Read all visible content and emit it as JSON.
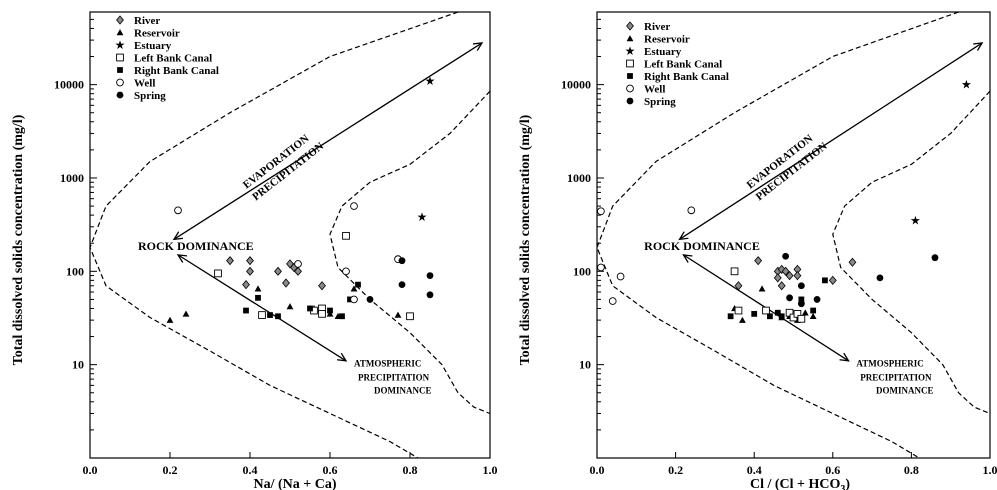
{
  "chart_data": [
    {
      "type": "scatter",
      "xlabel": "Na/ (Na + Ca)",
      "ylabel": "Total dissolved solids concentration (mg/l)",
      "xlim": [
        0,
        1
      ],
      "ylim": [
        1,
        60000
      ],
      "yscale": "log",
      "grid": false,
      "legend_position": "top-left",
      "x_ticks": [
        "0.0",
        "0.2",
        "0.4",
        "0.6",
        "0.8",
        "1.0"
      ],
      "y_ticks": [
        {
          "value": 10,
          "label": "10"
        },
        {
          "value": 100,
          "label": "100"
        },
        {
          "value": 1000,
          "label": "1000"
        },
        {
          "value": 10000,
          "label": "10000"
        }
      ],
      "annotations": {
        "evaporation": "EVAPORATION",
        "precipitation": "PRECIPITATION",
        "rock": "ROCK DOMINANCE",
        "atm1": "ATMOSPHERIC",
        "atm2": "PRECIPITATION",
        "atm3": "DOMINANCE"
      },
      "series": [
        {
          "name": "River",
          "marker": "diamond",
          "points": [
            [
              0.35,
              130
            ],
            [
              0.4,
              130
            ],
            [
              0.4,
              100
            ],
            [
              0.39,
              72
            ],
            [
              0.47,
              100
            ],
            [
              0.5,
              120
            ],
            [
              0.51,
              110
            ],
            [
              0.52,
              100
            ],
            [
              0.49,
              75
            ],
            [
              0.58,
              70
            ]
          ]
        },
        {
          "name": "Reservoir",
          "marker": "triangle",
          "points": [
            [
              0.2,
              30
            ],
            [
              0.24,
              35
            ],
            [
              0.42,
              65
            ],
            [
              0.5,
              42
            ],
            [
              0.56,
              40
            ],
            [
              0.6,
              35
            ],
            [
              0.62,
              33
            ],
            [
              0.66,
              65
            ],
            [
              0.77,
              34
            ]
          ]
        },
        {
          "name": "Estuary",
          "marker": "star",
          "points": [
            [
              0.85,
              11000
            ],
            [
              0.83,
              380
            ]
          ]
        },
        {
          "name": "Left Bank Canal",
          "marker": "square-open",
          "points": [
            [
              0.32,
              95
            ],
            [
              0.43,
              34
            ],
            [
              0.56,
              38
            ],
            [
              0.58,
              40
            ],
            [
              0.58,
              35
            ],
            [
              0.64,
              240
            ],
            [
              0.8,
              33
            ]
          ]
        },
        {
          "name": "Right Bank Canal",
          "marker": "square-filled",
          "points": [
            [
              0.39,
              38
            ],
            [
              0.42,
              52
            ],
            [
              0.45,
              34
            ],
            [
              0.47,
              33
            ],
            [
              0.55,
              40
            ],
            [
              0.6,
              38
            ],
            [
              0.63,
              33
            ],
            [
              0.65,
              50
            ],
            [
              0.67,
              72
            ]
          ]
        },
        {
          "name": "Well",
          "marker": "circle-open",
          "points": [
            [
              0.22,
              450
            ],
            [
              0.66,
              500
            ],
            [
              0.64,
              100
            ],
            [
              0.66,
              50
            ],
            [
              0.52,
              120
            ],
            [
              0.77,
              135
            ]
          ]
        },
        {
          "name": "Spring",
          "marker": "circle-filled",
          "points": [
            [
              0.7,
              50
            ],
            [
              0.78,
              130
            ],
            [
              0.78,
              72
            ],
            [
              0.85,
              90
            ],
            [
              0.85,
              56
            ]
          ]
        }
      ]
    },
    {
      "type": "scatter",
      "xlabel_main": "Cl / (Cl + HCO",
      "xlabel_sub": "3",
      "xlabel_tail": ")",
      "ylabel": "Total dissolved solids concentration (mg/l)",
      "xlim": [
        0,
        1
      ],
      "ylim": [
        1,
        60000
      ],
      "yscale": "log",
      "grid": false,
      "legend_position": "top-left",
      "x_ticks": [
        "0.0",
        "0.2",
        "0.4",
        "0.6",
        "0.8",
        "1.0"
      ],
      "y_ticks": [
        {
          "value": 10,
          "label": "10"
        },
        {
          "value": 100,
          "label": "100"
        },
        {
          "value": 1000,
          "label": "1000"
        },
        {
          "value": 10000,
          "label": "10000"
        }
      ],
      "annotations": {
        "evaporation": "EVAPORATION",
        "precipitation": "PRECIPITATION",
        "rock": "ROCK DOMINANCE",
        "atm1": "ATMOSPHERIC",
        "atm2": "PRECIPITATION",
        "atm3": "DOMINANCE"
      },
      "series": [
        {
          "name": "River",
          "marker": "diamond",
          "points": [
            [
              0.36,
              70
            ],
            [
              0.41,
              130
            ],
            [
              0.46,
              100
            ],
            [
              0.47,
              105
            ],
            [
              0.46,
              85
            ],
            [
              0.48,
              100
            ],
            [
              0.49,
              90
            ],
            [
              0.51,
              105
            ],
            [
              0.51,
              90
            ],
            [
              0.47,
              70
            ],
            [
              0.6,
              80
            ],
            [
              0.65,
              125
            ]
          ]
        },
        {
          "name": "Reservoir",
          "marker": "triangle",
          "points": [
            [
              0.35,
              40
            ],
            [
              0.37,
              30
            ],
            [
              0.42,
              65
            ],
            [
              0.47,
              32
            ],
            [
              0.49,
              33
            ],
            [
              0.51,
              30
            ],
            [
              0.53,
              36
            ],
            [
              0.55,
              33
            ]
          ]
        },
        {
          "name": "Estuary",
          "marker": "star",
          "points": [
            [
              0.94,
              10000
            ],
            [
              0.81,
              350
            ]
          ]
        },
        {
          "name": "Left Bank Canal",
          "marker": "square-open",
          "points": [
            [
              0.35,
              100
            ],
            [
              0.36,
              38
            ],
            [
              0.43,
              38
            ],
            [
              0.49,
              36
            ],
            [
              0.5,
              32
            ],
            [
              0.51,
              35
            ],
            [
              0.52,
              31
            ]
          ]
        },
        {
          "name": "Right Bank Canal",
          "marker": "square-filled",
          "points": [
            [
              0.34,
              33
            ],
            [
              0.4,
              35
            ],
            [
              0.44,
              33
            ],
            [
              0.46,
              36
            ],
            [
              0.47,
              33
            ],
            [
              0.52,
              50
            ],
            [
              0.55,
              38
            ],
            [
              0.58,
              80
            ]
          ]
        },
        {
          "name": "Well",
          "marker": "circle-open",
          "points": [
            [
              0.01,
              440
            ],
            [
              0.24,
              450
            ],
            [
              0.01,
              110
            ],
            [
              0.06,
              88
            ],
            [
              0.04,
              48
            ]
          ]
        },
        {
          "name": "Spring",
          "marker": "circle-filled",
          "points": [
            [
              0.48,
              145
            ],
            [
              0.52,
              70
            ],
            [
              0.49,
              52
            ],
            [
              0.52,
              45
            ],
            [
              0.56,
              50
            ],
            [
              0.72,
              85
            ],
            [
              0.86,
              140
            ]
          ]
        }
      ]
    }
  ]
}
